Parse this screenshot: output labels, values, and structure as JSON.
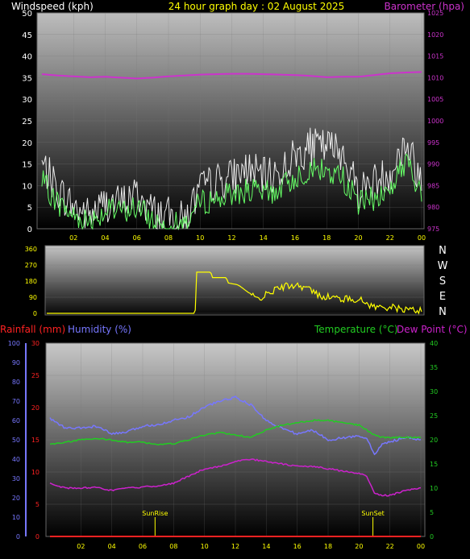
{
  "header": {
    "left_title": "Windspeed (kph)",
    "center_title": "24 hour graph day : 02 August 2025",
    "right_title": "Barometer (hpa)"
  },
  "colors": {
    "wind_gust": "#ffffff",
    "wind_avg": "#66ff66",
    "barometer": "#cc33cc",
    "direction": "#ffff00",
    "rainfall": "#ff2222",
    "humidity": "#7777ff",
    "temperature": "#22cc22",
    "dewpoint": "#cc22cc",
    "left_axis_text": "#ffffff",
    "right_axis_text": "#cc33cc",
    "x_tick_text": "#ffff00"
  },
  "chart_data": [
    {
      "type": "line",
      "x_tick_labels": [
        "02",
        "04",
        "06",
        "08",
        "10",
        "12",
        "14",
        "16",
        "18",
        "20",
        "22",
        "00"
      ],
      "ylabel": "Windspeed (kph)",
      "ylim": [
        0,
        50
      ],
      "y_ticks": [
        "0",
        "5",
        "10",
        "15",
        "20",
        "25",
        "30",
        "35",
        "40",
        "45",
        "50"
      ],
      "y2label": "Barometer (hpa)",
      "y2lim": [
        975,
        1025
      ],
      "y2_ticks": [
        "975",
        "980",
        "985",
        "990",
        "995",
        "1000",
        "1005",
        "1010",
        "1015",
        "1020",
        "1025"
      ],
      "x_hours": [
        0,
        1,
        2,
        3,
        4,
        5,
        6,
        7,
        8,
        9,
        10,
        11,
        12,
        13,
        14,
        15,
        16,
        17,
        18,
        19,
        20,
        21,
        22,
        23,
        24
      ],
      "series": [
        {
          "key": "gust",
          "values": [
            15,
            9,
            5,
            3,
            6,
            6,
            8,
            4,
            3,
            2,
            9,
            11,
            12,
            14,
            12,
            13,
            17,
            19,
            19,
            18,
            9,
            11,
            13,
            20,
            11
          ]
        },
        {
          "key": "avg",
          "values": [
            11,
            6,
            3,
            2,
            4,
            4,
            5,
            2,
            1,
            1,
            6,
            7,
            8,
            9,
            8,
            9,
            12,
            14,
            13,
            12,
            6,
            7,
            9,
            16,
            7
          ]
        },
        {
          "key": "barometer",
          "values": [
            1010.8,
            1010.5,
            1010.3,
            1010.1,
            1010.2,
            1010.0,
            1009.8,
            1010.0,
            1010.3,
            1010.5,
            1010.7,
            1010.8,
            1010.9,
            1010.9,
            1010.8,
            1010.7,
            1010.6,
            1010.4,
            1010.1,
            1010.2,
            1010.2,
            1010.6,
            1011.0,
            1011.2,
            1011.3
          ]
        }
      ]
    },
    {
      "type": "line",
      "x_tick_labels": [
        "02",
        "04",
        "06",
        "08",
        "10",
        "12",
        "14",
        "16",
        "18",
        "20",
        "22",
        "00"
      ],
      "ylim": [
        0,
        360
      ],
      "y_ticks": [
        "0",
        "90",
        "180",
        "270",
        "360"
      ],
      "compass_labels": [
        "N",
        "W",
        "S",
        "E",
        "N"
      ],
      "series": [
        {
          "key": "direction",
          "x": [
            0,
            9.5,
            9.6,
            10.5,
            10.6,
            11.5,
            11.6,
            12.2,
            12.4,
            13,
            13.4,
            14,
            14.6,
            15.2,
            16,
            16.7,
            17.4,
            18.2,
            19,
            19.9,
            21,
            22,
            22.5,
            23.3,
            24
          ],
          "values": [
            0,
            0,
            230,
            230,
            200,
            200,
            170,
            160,
            150,
            110,
            80,
            100,
            130,
            150,
            160,
            140,
            100,
            90,
            80,
            80,
            35,
            35,
            25,
            20,
            15
          ]
        }
      ]
    },
    {
      "type": "line",
      "x_tick_labels": [
        "02",
        "04",
        "06",
        "08",
        "10",
        "12",
        "14",
        "16",
        "18",
        "20",
        "22",
        "00"
      ],
      "ylabel": "Humidity (%)",
      "ylim": [
        0,
        100
      ],
      "y_ticks": [
        "0",
        "10",
        "20",
        "30",
        "40",
        "50",
        "60",
        "70",
        "80",
        "90",
        "100"
      ],
      "rain_label": "Rainfall (mm)",
      "rain_lim": [
        0,
        30
      ],
      "rain_ticks": [
        "0",
        "5",
        "10",
        "15",
        "20",
        "25",
        "30"
      ],
      "y2label": "Temperature (°C)",
      "y2label_b": "Dew Point (°C)",
      "y2lim": [
        0,
        40
      ],
      "y2_ticks": [
        "0",
        "5",
        "10",
        "15",
        "20",
        "25",
        "30",
        "35",
        "40"
      ],
      "annotations": [
        {
          "text": "SunRise",
          "hour": 6.8
        },
        {
          "text": "SunSet",
          "hour": 20.9
        }
      ],
      "x_hours": [
        0,
        1,
        2,
        3,
        4,
        5,
        6,
        7,
        8,
        9,
        10,
        11,
        12,
        13,
        14,
        15,
        16,
        17,
        18,
        19,
        20,
        20.5,
        21,
        21.5,
        22,
        23,
        24
      ],
      "series": [
        {
          "key": "humidity",
          "values": [
            61,
            56,
            56,
            57,
            53,
            54,
            57,
            58,
            60,
            62,
            67,
            70,
            72,
            68,
            60,
            56,
            53,
            55,
            50,
            51,
            52,
            51,
            42,
            48,
            49,
            51,
            50
          ]
        },
        {
          "key": "temperature",
          "values": [
            19,
            19.5,
            20,
            20.2,
            20,
            19.5,
            19.5,
            19,
            19.2,
            20,
            21,
            21.5,
            21,
            20.5,
            22,
            23,
            23.5,
            24,
            24,
            23.5,
            23,
            22,
            21,
            20.5,
            20.5,
            20.5,
            20.5
          ]
        },
        {
          "key": "dewpoint",
          "values": [
            11,
            10,
            10,
            10.2,
            9.5,
            10,
            10.2,
            10.5,
            11,
            12.5,
            14,
            14.5,
            15.5,
            16,
            15.5,
            15,
            14.5,
            14.5,
            14,
            13.5,
            13,
            12.5,
            9,
            8.5,
            8.5,
            9.5,
            10
          ]
        },
        {
          "key": "rainfall",
          "values": [
            0,
            0,
            0,
            0,
            0,
            0,
            0,
            0,
            0,
            0,
            0,
            0,
            0,
            0,
            0,
            0,
            0,
            0,
            0,
            0,
            0,
            0,
            0,
            0,
            0,
            0,
            0
          ]
        }
      ]
    }
  ],
  "panel3_labels": {
    "rainfall": "Rainfall (mm)",
    "humidity": "Humidity (%)",
    "temperature": "Temperature (°C)",
    "dewpoint": "Dew Point (°C)"
  }
}
